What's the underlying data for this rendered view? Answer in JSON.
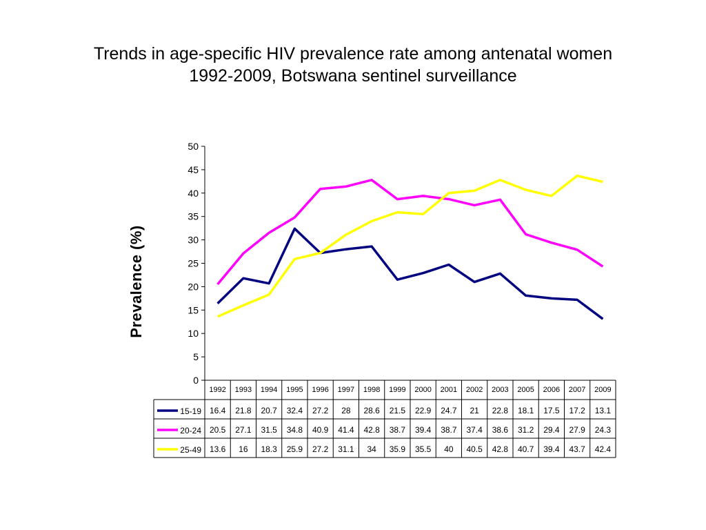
{
  "title_line1": "Trends in age-specific HIV prevalence rate among antenatal women",
  "title_line2": "1992-2009, Botswana sentinel surveillance",
  "chart_data": {
    "type": "line",
    "title": "Trends in age-specific HIV prevalence rate among antenatal women 1992-2009, Botswana sentinel surveillance",
    "xlabel": "",
    "ylabel": "Prevalence (%)",
    "ylim": [
      0,
      50
    ],
    "yticks": [
      0,
      5,
      10,
      15,
      20,
      25,
      30,
      35,
      40,
      45,
      50
    ],
    "grid": false,
    "legend": "data-table",
    "categories": [
      "1992",
      "1993",
      "1994",
      "1995",
      "1996",
      "1997",
      "1998",
      "1999",
      "2000",
      "2001",
      "2002",
      "2003",
      "2005",
      "2006",
      "2007",
      "2009"
    ],
    "series": [
      {
        "name": "15-19",
        "color": "#000080",
        "values": [
          16.4,
          21.8,
          20.7,
          32.4,
          27.2,
          28,
          28.6,
          21.5,
          22.9,
          24.7,
          21,
          22.8,
          18.1,
          17.5,
          17.2,
          13.1
        ]
      },
      {
        "name": "20-24",
        "color": "#ff00ff",
        "values": [
          20.5,
          27.1,
          31.5,
          34.8,
          40.9,
          41.4,
          42.8,
          38.7,
          39.4,
          38.7,
          37.4,
          38.6,
          31.2,
          29.4,
          27.9,
          24.3
        ]
      },
      {
        "name": "25-49",
        "color": "#ffff00",
        "values": [
          13.6,
          16,
          18.3,
          25.9,
          27.2,
          31.1,
          34,
          35.9,
          35.5,
          40,
          40.5,
          42.8,
          40.7,
          39.4,
          43.7,
          42.4
        ]
      }
    ]
  }
}
